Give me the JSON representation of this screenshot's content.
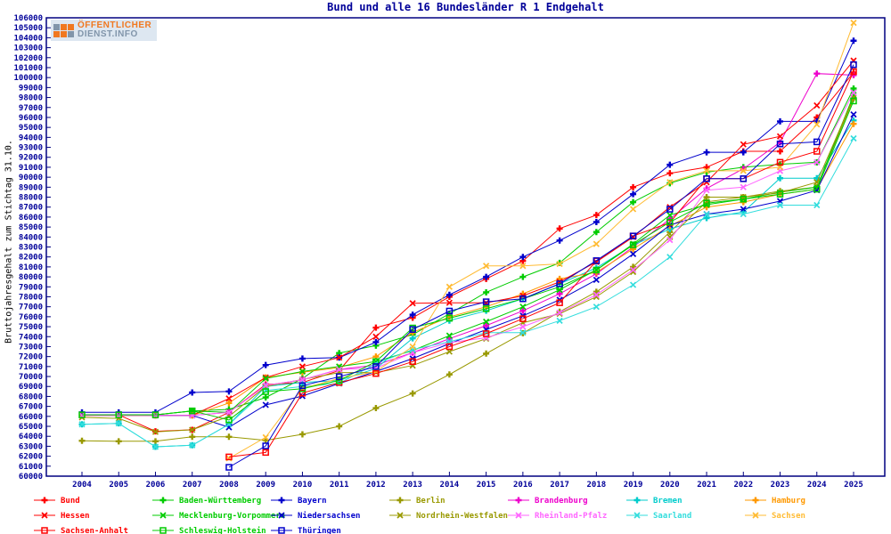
{
  "page": {
    "background": "#ffffff"
  },
  "logo": {
    "line1": "ÖFFENTLICHER",
    "line2": "DIENST.INFO",
    "accent_color": "#f07820",
    "secondary_color": "#8195aa"
  },
  "chart_data": {
    "type": "line",
    "title": "Bund und alle 16 Bundesländer R 1 Endgehalt",
    "ylabel": "Bruttojahresgehalt zum Stichtag 31.10.",
    "xlabel": "",
    "x_range": [
      2004,
      2025
    ],
    "y_range": [
      60000,
      106000
    ],
    "y_step": 1000,
    "grid": false,
    "legend_position": "bottom",
    "frame_color": "#000080",
    "tick_label_color": "#000099",
    "years": [
      2004,
      2005,
      2006,
      2007,
      2008,
      2009,
      2010,
      2011,
      2012,
      2013,
      2014,
      2015,
      2016,
      2017,
      2018,
      2019,
      2020,
      2021,
      2022,
      2023,
      2024,
      2025
    ],
    "series": [
      {
        "id": "bund",
        "name": "Bund",
        "color": "#ff0000",
        "marker": "plus",
        "values": [
          66150,
          66150,
          64500,
          64650,
          66400,
          69200,
          69400,
          70600,
          74900,
          75900,
          78000,
          79800,
          81600,
          84850,
          86200,
          89000,
          90400,
          91000,
          92600,
          92600,
          96000,
          100500
        ]
      },
      {
        "id": "baden-wuerttemberg",
        "name": "Baden-Württemberg",
        "color": "#00cc00",
        "marker": "plus",
        "values": [
          66150,
          66150,
          66150,
          66550,
          66700,
          67900,
          69800,
          72350,
          73100,
          74200,
          76300,
          78450,
          80000,
          81400,
          84500,
          87500,
          89400,
          90500,
          91000,
          91300,
          91500,
          98900
        ]
      },
      {
        "id": "bayern",
        "name": "Bayern",
        "color": "#0000cc",
        "marker": "plus",
        "values": [
          66400,
          66400,
          66400,
          68400,
          68500,
          71150,
          71800,
          71900,
          73450,
          76200,
          78200,
          80000,
          82000,
          83650,
          85500,
          88300,
          91250,
          92500,
          92500,
          95600,
          95600,
          103700
        ]
      },
      {
        "id": "berlin",
        "name": "Berlin",
        "color": "#999900",
        "marker": "plus",
        "values": [
          63550,
          63500,
          63500,
          63950,
          63950,
          63600,
          64200,
          65000,
          66830,
          68300,
          70200,
          72300,
          74350,
          76500,
          78500,
          81000,
          84500,
          88000,
          88000,
          88600,
          89000,
          97900
        ]
      },
      {
        "id": "brandenburg",
        "name": "Brandenburg",
        "color": "#ee00cc",
        "marker": "plus",
        "values": [
          66100,
          66100,
          66100,
          66100,
          66400,
          69100,
          69670,
          70720,
          71140,
          72400,
          73800,
          75100,
          76600,
          78300,
          80300,
          83000,
          85800,
          88870,
          90850,
          93500,
          100400,
          100250
        ]
      },
      {
        "id": "bremen",
        "name": "Bremen",
        "color": "#00cccc",
        "marker": "plus",
        "values": [
          65200,
          65300,
          62950,
          63100,
          65200,
          69000,
          69400,
          69600,
          70800,
          73830,
          75610,
          76600,
          77800,
          79300,
          80900,
          83200,
          84800,
          85900,
          86500,
          89900,
          89900,
          95700
        ]
      },
      {
        "id": "hamburg",
        "name": "Hamburg",
        "color": "#ff9900",
        "marker": "plus",
        "values": [
          66100,
          66100,
          66100,
          66100,
          67340,
          69900,
          70420,
          70900,
          72000,
          74420,
          75980,
          77000,
          78300,
          79800,
          80450,
          82800,
          85100,
          87000,
          87500,
          88300,
          88800,
          95350
        ]
      },
      {
        "id": "hessen",
        "name": "Hessen",
        "color": "#ff0000",
        "marker": "cross",
        "values": [
          66100,
          66100,
          66100,
          66100,
          67790,
          69900,
          71000,
          71900,
          74000,
          77350,
          77400,
          77400,
          78100,
          79500,
          81500,
          84000,
          87000,
          89500,
          93300,
          94100,
          97200,
          101700
        ]
      },
      {
        "id": "mecklenburg-vorpommern",
        "name": "Mecklenburg-Vorpommern",
        "color": "#00cc00",
        "marker": "cross",
        "values": [
          66150,
          66150,
          66150,
          66550,
          66400,
          69800,
          70500,
          71000,
          71500,
          72600,
          74100,
          75500,
          77000,
          78700,
          80700,
          83300,
          86200,
          87240,
          87800,
          88500,
          89000,
          98250
        ]
      },
      {
        "id": "niedersachsen",
        "name": "Niedersachsen",
        "color": "#0000cc",
        "marker": "cross",
        "values": [
          66150,
          66150,
          66100,
          66100,
          64900,
          67150,
          68040,
          69300,
          70500,
          71800,
          73300,
          74700,
          76100,
          77700,
          79700,
          82300,
          85200,
          86300,
          86800,
          87600,
          88700,
          96300
        ]
      },
      {
        "id": "nordrhein-westfalen",
        "name": "Nordrhein-Westfalen",
        "color": "#999900",
        "marker": "cross",
        "values": [
          65900,
          65800,
          64450,
          64650,
          66000,
          69000,
          69700,
          70400,
          70400,
          71100,
          72500,
          73800,
          75400,
          76300,
          78000,
          80500,
          84000,
          87530,
          88000,
          88430,
          89500,
          98000
        ]
      },
      {
        "id": "rheinland-pfalz",
        "name": "Rheinland-Pfalz",
        "color": "#ff66ff",
        "marker": "cross",
        "values": [
          66100,
          66100,
          66100,
          66100,
          66400,
          69100,
          69670,
          70700,
          70840,
          72390,
          73400,
          73890,
          75000,
          76400,
          78200,
          80700,
          83700,
          88700,
          89000,
          90640,
          91500,
          98500
        ]
      },
      {
        "id": "saarland",
        "name": "Saarland",
        "color": "#33dddd",
        "marker": "cross",
        "values": [
          65200,
          65300,
          62950,
          63100,
          65200,
          68600,
          69000,
          69300,
          71300,
          72700,
          73500,
          74400,
          74400,
          75600,
          77000,
          79200,
          82000,
          86280,
          86300,
          87200,
          87200,
          93900
        ]
      },
      {
        "id": "sachsen",
        "name": "Sachsen",
        "color": "#ffbb33",
        "marker": "cross",
        "values": [
          null,
          null,
          null,
          null,
          61790,
          63900,
          68800,
          69800,
          70500,
          73000,
          79000,
          81100,
          81100,
          81300,
          83300,
          86800,
          89500,
          90650,
          90650,
          91000,
          95300,
          105500
        ]
      },
      {
        "id": "sachsen-anhalt",
        "name": "Sachsen-Anhalt",
        "color": "#ff0000",
        "marker": "square",
        "values": [
          null,
          null,
          null,
          null,
          61930,
          62380,
          68330,
          69400,
          70300,
          71500,
          73000,
          74300,
          75800,
          77400,
          81600,
          84100,
          85450,
          89850,
          89850,
          91500,
          92600,
          100600
        ]
      },
      {
        "id": "schleswig-holstein",
        "name": "Schleswig-Holstein",
        "color": "#00cc00",
        "marker": "square",
        "values": [
          66150,
          66150,
          66150,
          66550,
          65640,
          68480,
          68780,
          69600,
          71500,
          74870,
          75850,
          76800,
          77800,
          79000,
          80680,
          83210,
          85500,
          87400,
          87800,
          88300,
          88800,
          97650
        ]
      },
      {
        "id": "thueringen",
        "name": "Thüringen",
        "color": "#0000cc",
        "marker": "square",
        "values": [
          null,
          null,
          null,
          null,
          60890,
          63040,
          69080,
          69980,
          71000,
          74720,
          76570,
          77500,
          77800,
          79300,
          81630,
          84100,
          86790,
          89850,
          89850,
          93340,
          93550,
          101300
        ]
      }
    ]
  }
}
